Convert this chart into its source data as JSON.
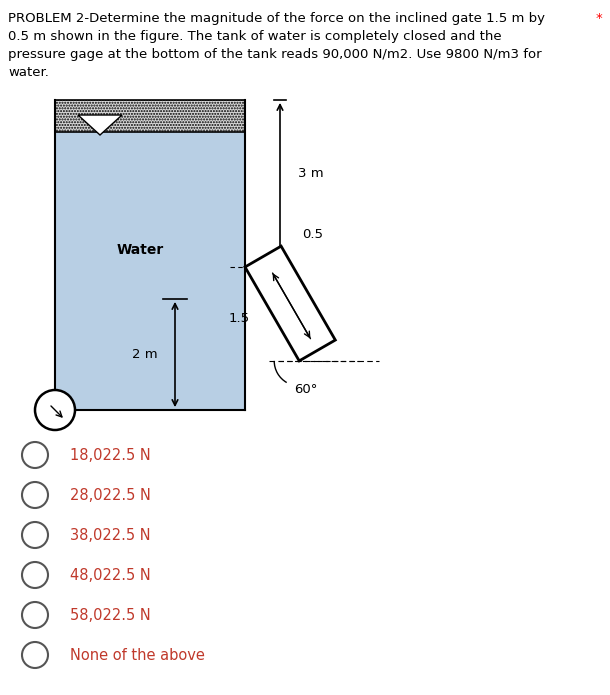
{
  "title_line1": "PROBLEM 2-Determine the magnitude of the force on the inclined gate 1.5 m by",
  "title_line2": "0.5 m shown in the figure. The tank of water is completely closed and the",
  "title_line3": "pressure gage at the bottom of the tank reads 90,000 N/m2. Use 9800 N/m3 for",
  "title_line4": "water.",
  "asterisk": "*",
  "water_label": "Water",
  "label_2m": "2 m",
  "label_3m": "3 m",
  "label_15": "1.5",
  "label_05": "0.5",
  "label_60": "60°",
  "choices": [
    "18,022.5 N",
    "28,022.5 N",
    "38,022.5 N",
    "48,022.5 N",
    "58,022.5 N",
    "None of the above"
  ],
  "tank_color": "#b8cfe4",
  "tank_edge_color": "#000000",
  "bg_color": "#ffffff",
  "text_color": "#000000",
  "choice_text_color": "#c0392b",
  "title_fontsize": 10.5,
  "choice_fontsize": 11.5
}
